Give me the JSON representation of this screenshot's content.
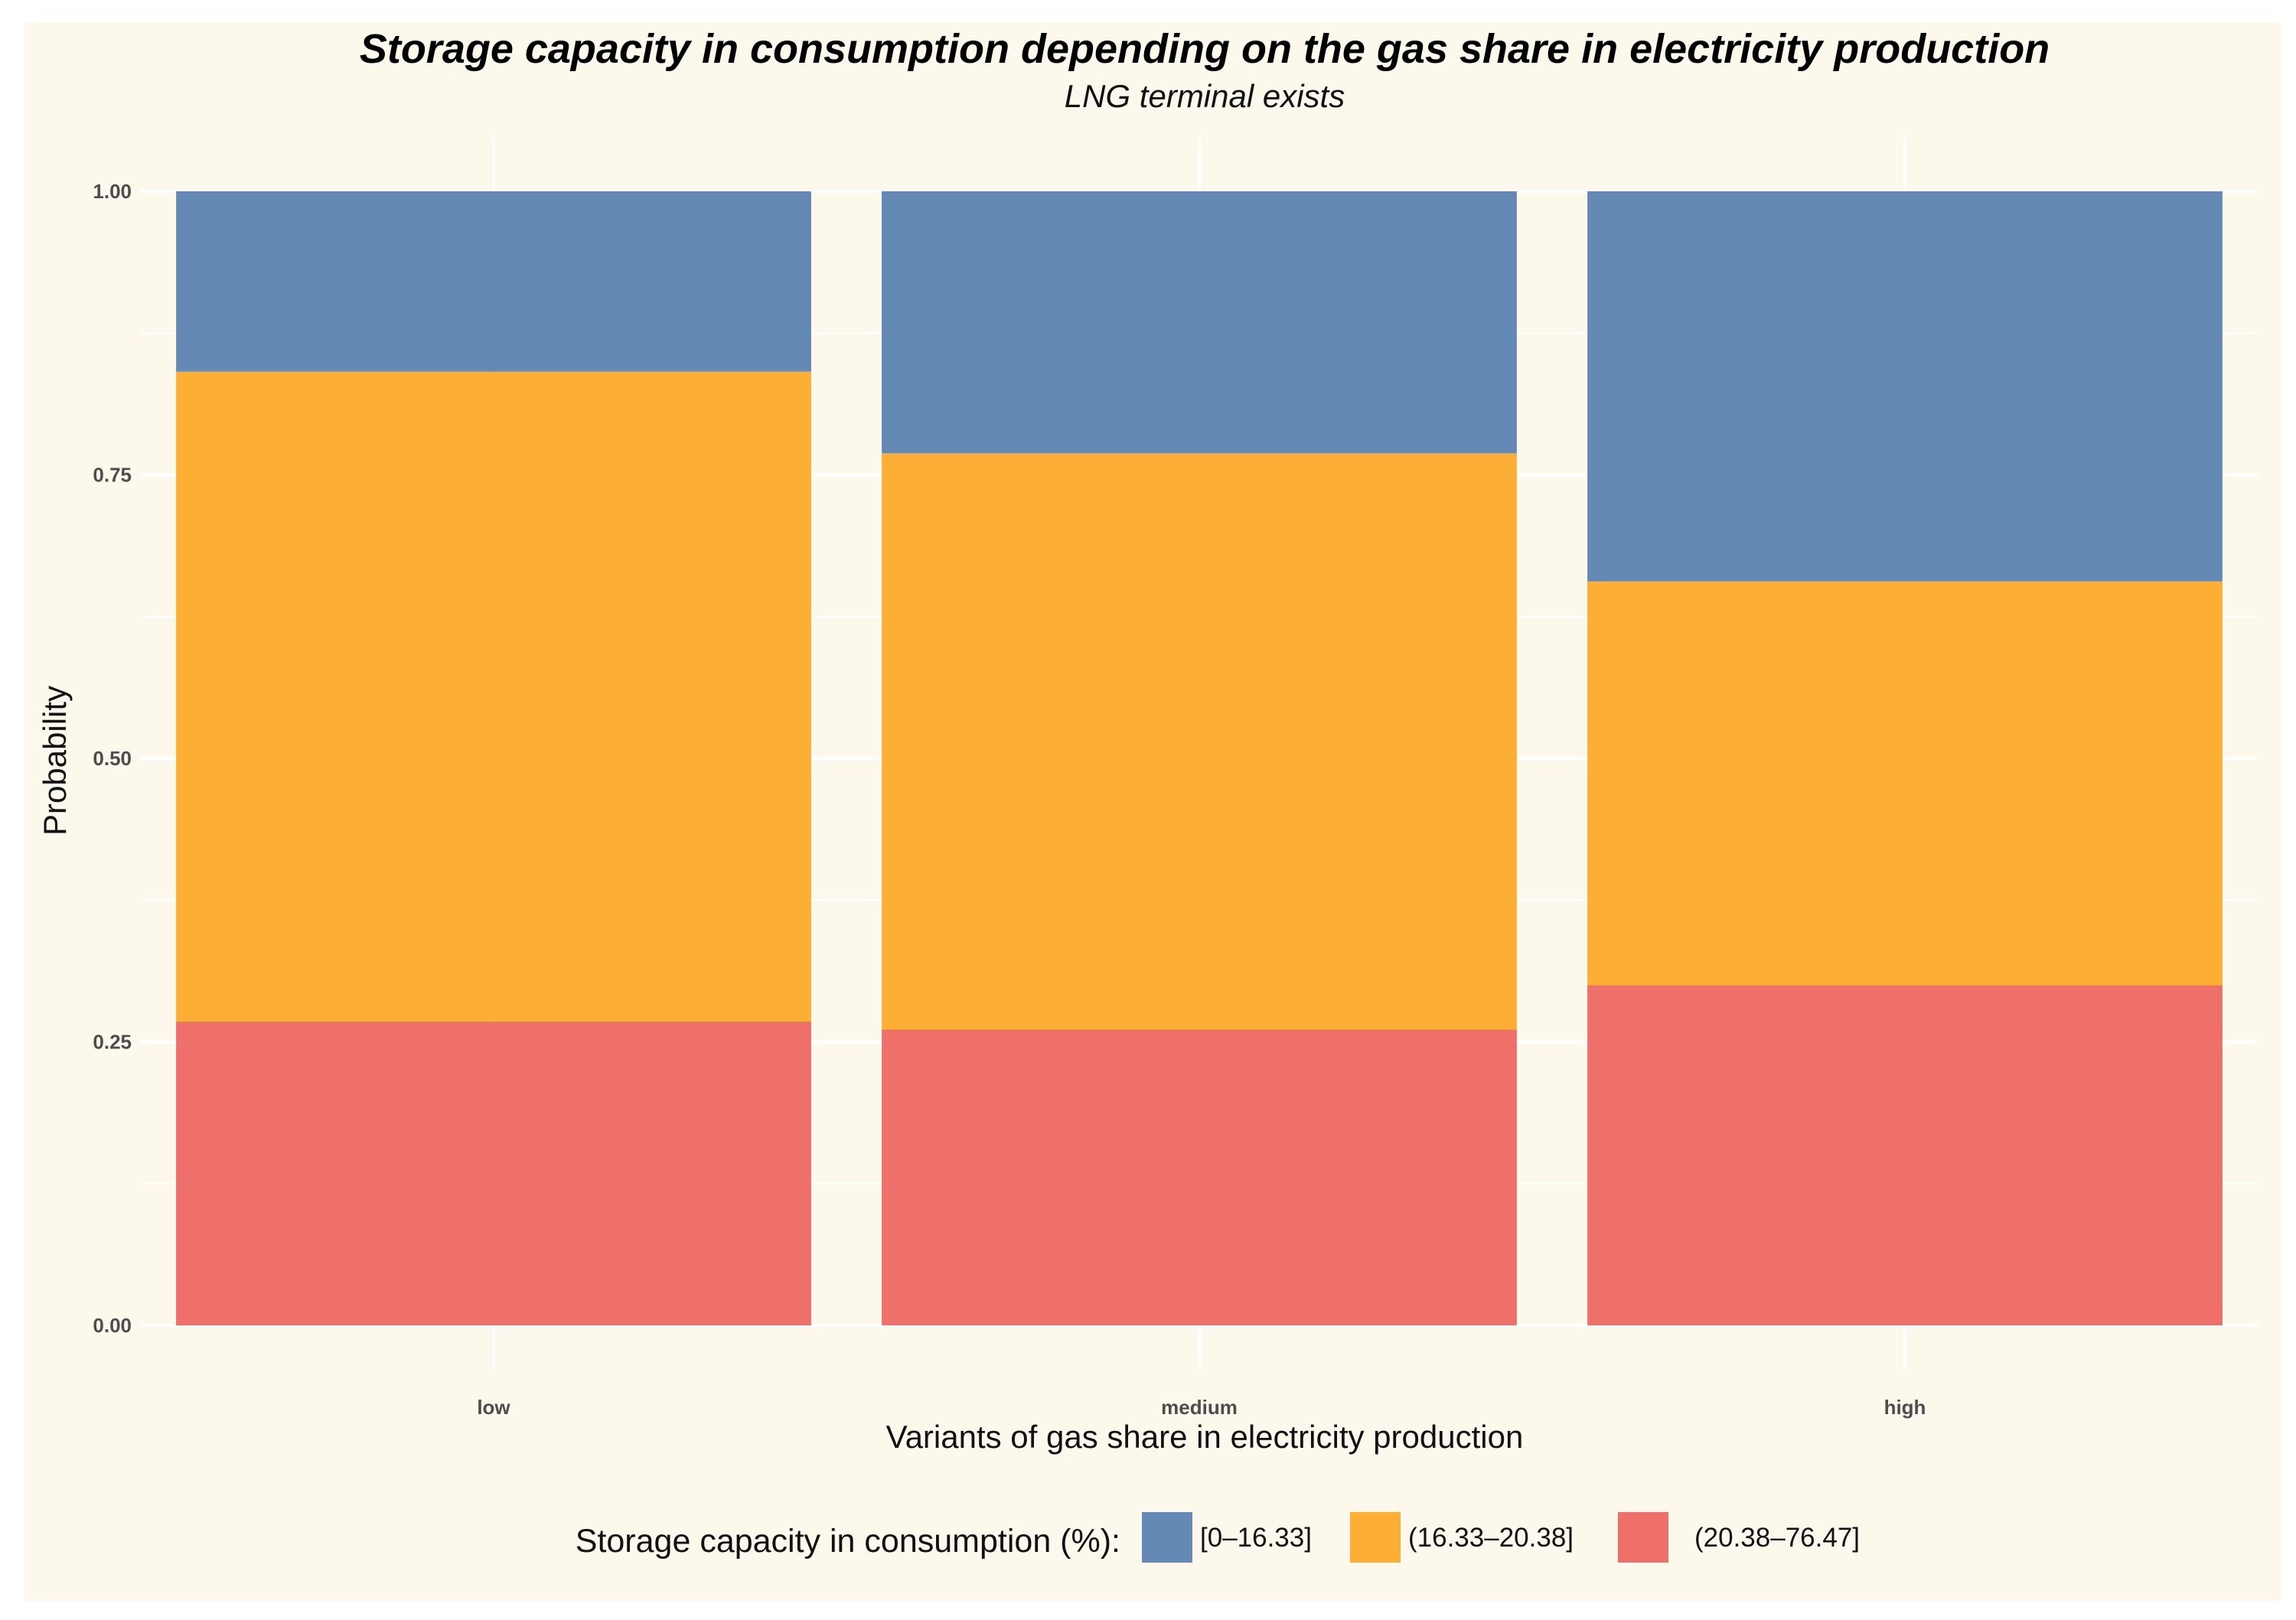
{
  "chart_data": {
    "type": "bar",
    "stacked": true,
    "title": "Storage capacity in consumption depending on the gas share in electricity production",
    "subtitle": "LNG terminal exists",
    "xlabel": "Variants of gas share in electricity production",
    "ylabel": "Probability",
    "ylim": [
      0,
      1
    ],
    "yticks": [
      "0.00",
      "0.25",
      "0.50",
      "0.75",
      "1.00"
    ],
    "ytick_values": [
      0,
      0.25,
      0.5,
      0.75,
      1.0
    ],
    "categories": [
      "low",
      "medium",
      "high"
    ],
    "series": [
      {
        "name": "(20.38–76.47]",
        "color": "#ef6f6a",
        "values": [
          0.268,
          0.261,
          0.3
        ]
      },
      {
        "name": "(16.33–20.38]",
        "color": "#fdae35",
        "values": [
          0.573,
          0.508,
          0.356
        ]
      },
      {
        "name": "[0–16.33]",
        "color": "#6489b4",
        "values": [
          0.159,
          0.231,
          0.344
        ]
      }
    ],
    "legend": {
      "title": "Storage capacity in consumption (%):",
      "position": "bottom",
      "order": [
        "[0–16.33]",
        "(16.33–20.38]",
        "(20.38–76.47]"
      ]
    },
    "grid": true
  }
}
